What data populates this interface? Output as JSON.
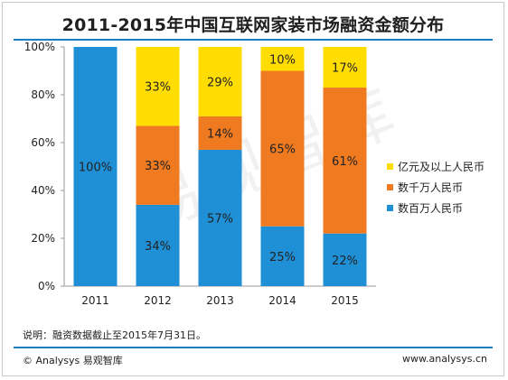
{
  "title": "2011-2015年中国互联网家装市场融资金额分布",
  "note": "说明：融资数据截止至2015年7月31日。",
  "footer": {
    "left": "© Analysys 易观智库",
    "right": "www.analysys.cn"
  },
  "watermark": "易观智库",
  "colors": {
    "blue": "#1f8fd6",
    "orange": "#f07a20",
    "yellow": "#ffdd00",
    "accent": "#1a7fc1"
  },
  "chart_data": {
    "type": "bar",
    "stacked": true,
    "categories": [
      "2011",
      "2012",
      "2013",
      "2014",
      "2015"
    ],
    "series": [
      {
        "name": "数百万人民币",
        "color": "#1f8fd6",
        "values": [
          100,
          34,
          57,
          25,
          22
        ],
        "labels": [
          "100%",
          "34%",
          "57%",
          "25%",
          "22%"
        ]
      },
      {
        "name": "数千万人民币",
        "color": "#f07a20",
        "values": [
          0,
          33,
          14,
          65,
          61
        ],
        "labels": [
          "",
          "33%",
          "14%",
          "65%",
          "61%"
        ]
      },
      {
        "name": "亿元及以上人民币",
        "color": "#ffdd00",
        "values": [
          0,
          33,
          29,
          10,
          17
        ],
        "labels": [
          "",
          "33%",
          "29%",
          "10%",
          "17%"
        ]
      }
    ],
    "ylim": [
      0,
      100
    ],
    "yticks": [
      "0%",
      "20%",
      "40%",
      "60%",
      "80%",
      "100%"
    ],
    "legend": "right"
  }
}
